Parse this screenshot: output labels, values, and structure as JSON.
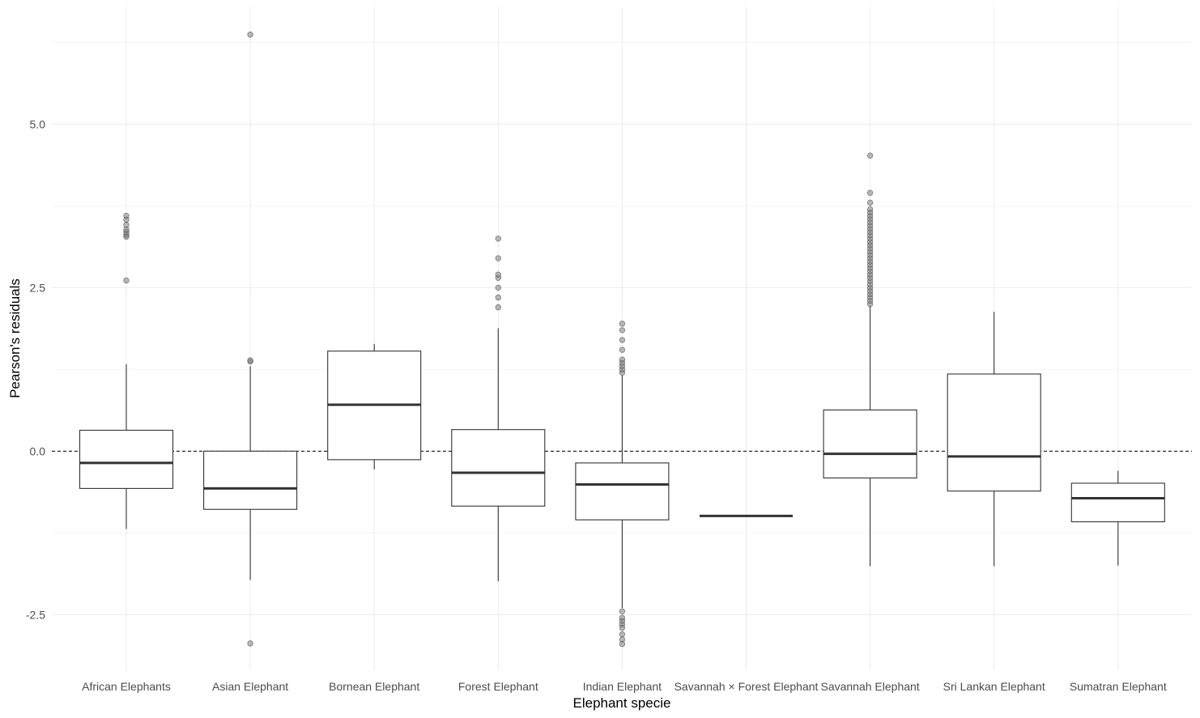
{
  "chart_data": {
    "type": "boxplot",
    "xlabel": "Elephant specie",
    "ylabel": "Pearson's residuals",
    "ylim": [
      -3.35,
      6.8
    ],
    "yticks": [
      -2.5,
      0.0,
      2.5,
      5.0
    ],
    "ytick_labels": [
      "-2.5",
      "0.0",
      "2.5",
      "5.0"
    ],
    "reference_line": {
      "y": 0,
      "style": "dashed"
    },
    "grid": true,
    "legend": "none",
    "categories": [
      "African Elephants",
      "Asian Elephant",
      "Bornean Elephant",
      "Forest Elephant",
      "Indian Elephant",
      "Savannah × Forest Elephant",
      "Savannah Elephant",
      "Sri Lankan Elephant",
      "Sumatran Elephant"
    ],
    "boxes": [
      {
        "category": "African Elephants",
        "whisker_low": -1.19,
        "q1": -0.57,
        "median": -0.18,
        "q3": 0.32,
        "whisker_high": 1.33,
        "outliers": [
          2.61,
          3.28,
          3.31,
          3.35,
          3.39,
          3.46,
          3.54,
          3.6
        ]
      },
      {
        "category": "Asian Elephant",
        "whisker_low": -1.97,
        "q1": -0.89,
        "median": -0.57,
        "q3": 0.0,
        "whisker_high": 1.3,
        "outliers": [
          1.37,
          1.39,
          6.37,
          -2.94
        ]
      },
      {
        "category": "Bornean Elephant",
        "whisker_low": -0.28,
        "q1": -0.13,
        "median": 0.71,
        "q3": 1.53,
        "whisker_high": 1.64,
        "outliers": []
      },
      {
        "category": "Forest Elephant",
        "whisker_low": -1.99,
        "q1": -0.84,
        "median": -0.33,
        "q3": 0.33,
        "whisker_high": 1.88,
        "outliers": [
          2.2,
          2.35,
          2.5,
          2.65,
          2.7,
          2.95,
          3.25
        ]
      },
      {
        "category": "Indian Elephant",
        "whisker_low": -2.4,
        "q1": -1.05,
        "median": -0.51,
        "q3": -0.18,
        "whisker_high": 1.16,
        "outliers": [
          1.2,
          1.25,
          1.3,
          1.35,
          1.4,
          1.55,
          1.7,
          1.85,
          1.95,
          -2.45,
          -2.55,
          -2.6,
          -2.65,
          -2.7,
          -2.8,
          -2.88,
          -2.95
        ]
      },
      {
        "category": "Savannah × Forest Elephant",
        "whisker_low": -0.99,
        "q1": -0.99,
        "median": -0.99,
        "q3": -0.99,
        "whisker_high": -0.99,
        "outliers": []
      },
      {
        "category": "Savannah Elephant",
        "whisker_low": -1.76,
        "q1": -0.41,
        "median": -0.04,
        "q3": 0.63,
        "whisker_high": 2.22,
        "outliers": [
          2.25,
          2.3,
          2.35,
          2.4,
          2.45,
          2.5,
          2.55,
          2.6,
          2.65,
          2.7,
          2.75,
          2.8,
          2.85,
          2.9,
          2.95,
          3.0,
          3.05,
          3.1,
          3.15,
          3.2,
          3.25,
          3.3,
          3.35,
          3.4,
          3.45,
          3.5,
          3.55,
          3.6,
          3.65,
          3.7,
          3.8,
          3.95,
          4.52
        ]
      },
      {
        "category": "Sri Lankan Elephant",
        "whisker_low": -1.76,
        "q1": -0.61,
        "median": -0.08,
        "q3": 1.18,
        "whisker_high": 2.13,
        "outliers": []
      },
      {
        "category": "Sumatran Elephant",
        "whisker_low": -1.75,
        "q1": -1.08,
        "median": -0.72,
        "q3": -0.49,
        "whisker_high": -0.3,
        "outliers": []
      }
    ]
  }
}
